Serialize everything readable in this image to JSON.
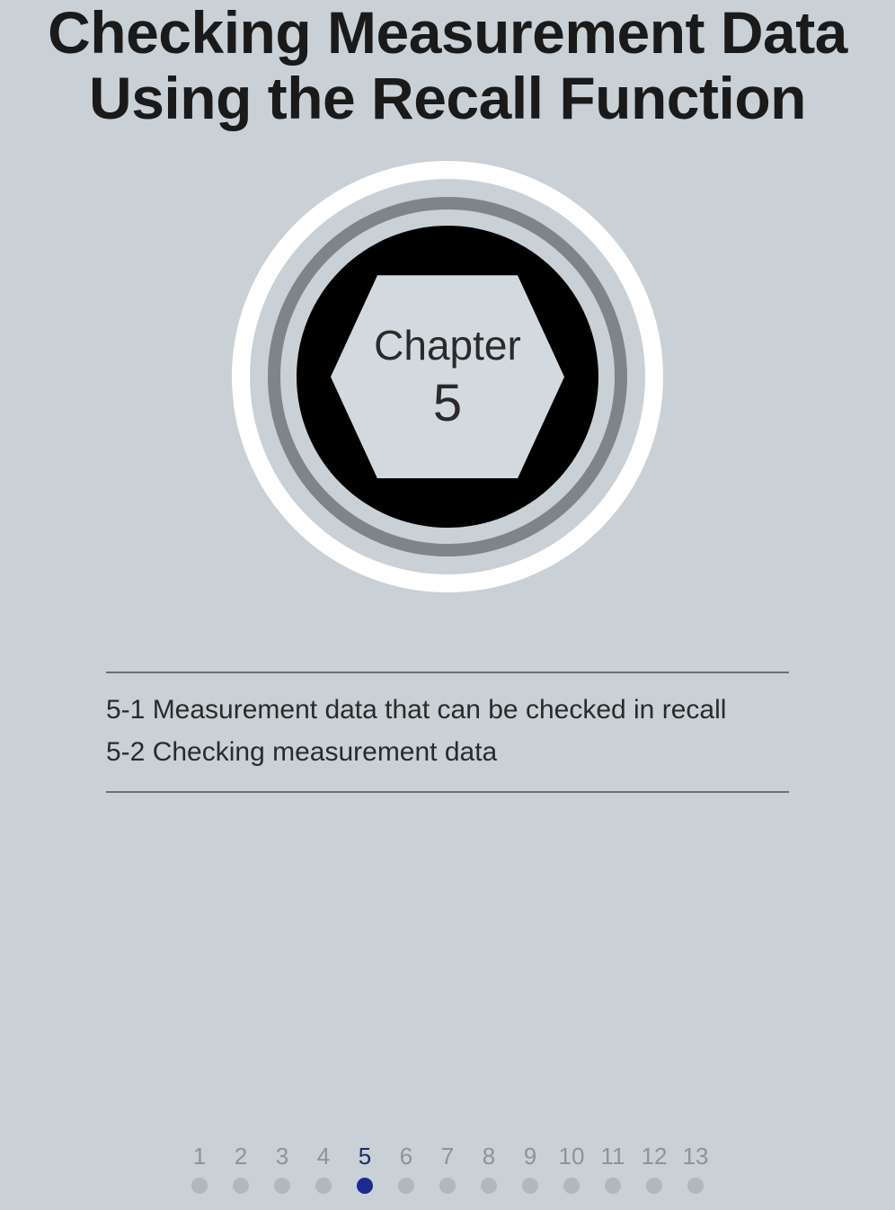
{
  "title_line1": "Checking Measurement Data",
  "title_line2": "Using the Recall Function",
  "badge": {
    "label": "Chapter",
    "number": "5",
    "ring_white_color": "#ffffff",
    "ring_gray_color": "#7f8489",
    "ring_black_color": "#000000",
    "hex_bg": "#d3dadf"
  },
  "toc": [
    "5-1 Measurement data that can be checked in recall",
    "5-2 Checking measurement data"
  ],
  "pager": {
    "items": [
      "1",
      "2",
      "3",
      "4",
      "5",
      "6",
      "7",
      "8",
      "9",
      "10",
      "11",
      "12",
      "13"
    ],
    "active_index": 4,
    "inactive_num_color": "#8d9398",
    "active_num_color": "#1d2a6b",
    "inactive_dot_color": "#b0b8be",
    "active_dot_color": "#1d2a8f"
  },
  "page_bg": "#c9d1d6",
  "title_font_size": 66,
  "toc_font_size": 30
}
